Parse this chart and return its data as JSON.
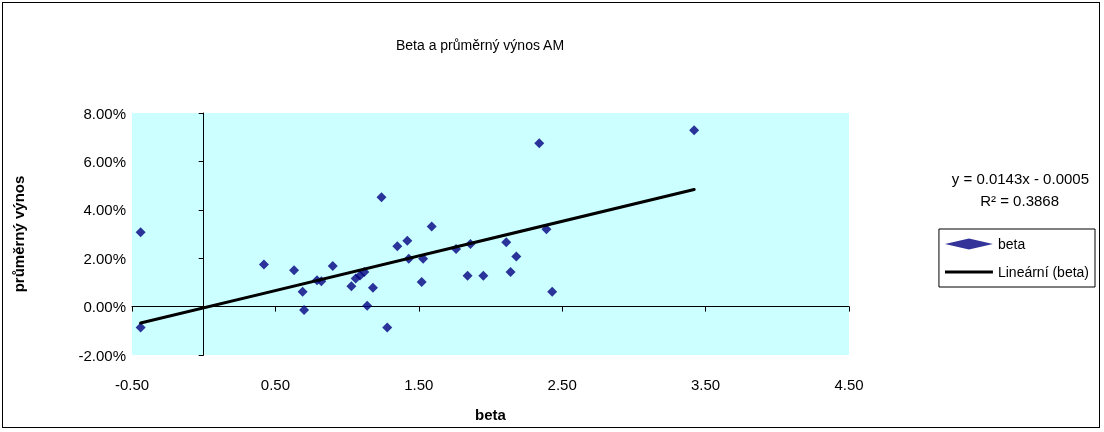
{
  "chart_data": {
    "type": "scatter",
    "title": "Beta a průměrný výnos AM",
    "xlabel": "beta",
    "ylabel": "průměrný výnos",
    "xlim": [
      -0.5,
      4.5
    ],
    "xticks": [
      {
        "value": -0.5,
        "label": "-0.50"
      },
      {
        "value": 0.5,
        "label": "0.50"
      },
      {
        "value": 1.5,
        "label": "1.50"
      },
      {
        "value": 2.5,
        "label": "2.50"
      },
      {
        "value": 3.5,
        "label": "3.50"
      },
      {
        "value": 4.5,
        "label": "4.50"
      }
    ],
    "ylim": [
      -0.02,
      0.08
    ],
    "yticks": [
      {
        "value": -0.02,
        "label": "-2.00%"
      },
      {
        "value": 0,
        "label": "0.00%"
      },
      {
        "value": 0.02,
        "label": "2.00%"
      },
      {
        "value": 0.04,
        "label": "4.00%"
      },
      {
        "value": 0.06,
        "label": "6.00%"
      },
      {
        "value": 0.08,
        "label": "8.00%"
      }
    ],
    "series": [
      {
        "name": "beta",
        "color": "#000080",
        "x": [
          -0.44,
          -0.44,
          0.42,
          0.63,
          0.69,
          0.7,
          0.79,
          0.82,
          0.9,
          1.03,
          1.06,
          1.09,
          1.12,
          1.18,
          1.14,
          1.24,
          1.28,
          1.35,
          1.42,
          1.43,
          1.53,
          1.52,
          1.59,
          1.76,
          1.86,
          1.84,
          1.95,
          2.11,
          2.18,
          2.14,
          2.34,
          2.39,
          2.43,
          3.42
        ],
        "marker": "diamond",
        "values": [
          0.0307,
          -0.0086,
          0.0174,
          0.015,
          0.0061,
          -0.0014,
          0.0109,
          0.0105,
          0.0168,
          0.0084,
          0.0116,
          0.0129,
          0.0143,
          0.0078,
          0.0003,
          0.0452,
          -0.0086,
          0.0249,
          0.0272,
          0.0198,
          0.0198,
          0.0102,
          0.0331,
          0.0238,
          0.0259,
          0.0127,
          0.0127,
          0.0266,
          0.0207,
          0.0143,
          0.0675,
          0.032,
          0.0061,
          0.0729
        ]
      },
      {
        "name": "Lineární (beta)",
        "type": "line",
        "marker": "none",
        "color": "#000000",
        "x": [
          -0.44,
          3.42
        ],
        "values": [
          -0.0068,
          0.0484
        ]
      }
    ],
    "legend": "right",
    "annotations": [
      "y = 0.0143x - 0.0005",
      "R² = 0.3868"
    ]
  }
}
